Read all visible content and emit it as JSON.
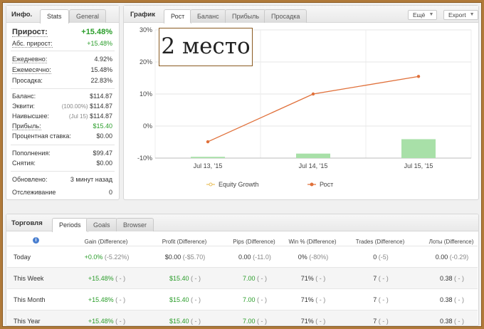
{
  "info": {
    "title": "Инфо.",
    "tabs": [
      "Stats",
      "General"
    ],
    "growth_label": "Прирост:",
    "growth_value": "+15.48%",
    "abs_label": "Абс. прирост:",
    "abs_value": "+15.48%",
    "daily_label": "Ежедневно:",
    "daily_value": "4.92%",
    "monthly_label": "Ежемесячно:",
    "monthly_value": "15.48%",
    "drawdown_label": "Просадка:",
    "drawdown_value": "22.83%",
    "balance_label": "Баланс:",
    "balance_value": "$114.87",
    "equity_label": "Эквити:",
    "equity_note": "(100.00%)",
    "equity_value": "$114.87",
    "highest_label": "Наивысшее:",
    "highest_note": "(Jul 15)",
    "highest_value": "$114.87",
    "profit_label": "Прибыль:",
    "profit_value": "$15.40",
    "interest_label": "Процентная ставка:",
    "interest_value": "$0.00",
    "deposits_label": "Пополнения:",
    "deposits_value": "$99.47",
    "withdrawals_label": "Снятия:",
    "withdrawals_value": "$0.00",
    "updated_label": "Обновлено:",
    "updated_value": "3 минут назад",
    "tracking_label": "Отслеживание",
    "tracking_value": "0"
  },
  "chart_panel": {
    "title": "График",
    "tabs": [
      "Рост",
      "Баланс",
      "Прибыль",
      "Просадка"
    ],
    "more_label": "Ещё",
    "export_label": "Export",
    "badge_text": "2 место"
  },
  "chart_data": {
    "type": "line",
    "categories": [
      "Jul 13, '15",
      "Jul 14, '15",
      "Jul 15, '15"
    ],
    "ylim": [
      -10,
      30
    ],
    "yticks": [
      "30%",
      "20%",
      "10%",
      "0%",
      "-10%"
    ],
    "ytick_values": [
      30,
      20,
      10,
      0,
      -10
    ],
    "series": [
      {
        "name": "Equity Growth",
        "type": "bar",
        "color": "#a8e0a8",
        "values": [
          -9.6,
          -8.6,
          -4.1
        ]
      },
      {
        "name": "Рост",
        "type": "line",
        "color": "#e0703a",
        "values": [
          -4.9,
          10.0,
          15.48
        ]
      }
    ],
    "legend": [
      "Equity Growth",
      "Рост"
    ]
  },
  "trading": {
    "title": "Торговля",
    "tabs": [
      "Periods",
      "Goals",
      "Browser"
    ],
    "headers": [
      "Gain (Difference)",
      "Profit (Difference)",
      "Pips (Difference)",
      "Win % (Difference)",
      "Trades (Difference)",
      "Лоты (Difference)"
    ],
    "rows": [
      {
        "period": "Today",
        "gain": "+0.0%",
        "gain_d": "(-5.22%)",
        "profit": "$0.00",
        "profit_d": "(-$5.70)",
        "pips": "0.00",
        "pips_d": "(-11.0)",
        "win": "0%",
        "win_d": "(-80%)",
        "trades": "0",
        "trades_d": "(-5)",
        "lots": "0.00",
        "lots_d": "(-0.29)"
      },
      {
        "period": "This Week",
        "gain": "+15.48%",
        "gain_d": "( - )",
        "profit": "$15.40",
        "profit_d": "( - )",
        "pips": "7.00",
        "pips_d": "( - )",
        "win": "71%",
        "win_d": "( - )",
        "trades": "7",
        "trades_d": "( - )",
        "lots": "0.38",
        "lots_d": "( - )"
      },
      {
        "period": "This Month",
        "gain": "+15.48%",
        "gain_d": "( - )",
        "profit": "$15.40",
        "profit_d": "( - )",
        "pips": "7.00",
        "pips_d": "( - )",
        "win": "71%",
        "win_d": "( - )",
        "trades": "7",
        "trades_d": "( - )",
        "lots": "0.38",
        "lots_d": "( - )"
      },
      {
        "period": "This Year",
        "gain": "+15.48%",
        "gain_d": "( - )",
        "profit": "$15.40",
        "profit_d": "( - )",
        "pips": "7.00",
        "pips_d": "( - )",
        "win": "71%",
        "win_d": "( - )",
        "trades": "7",
        "trades_d": "( - )",
        "lots": "0.38",
        "lots_d": "( - )"
      }
    ]
  }
}
